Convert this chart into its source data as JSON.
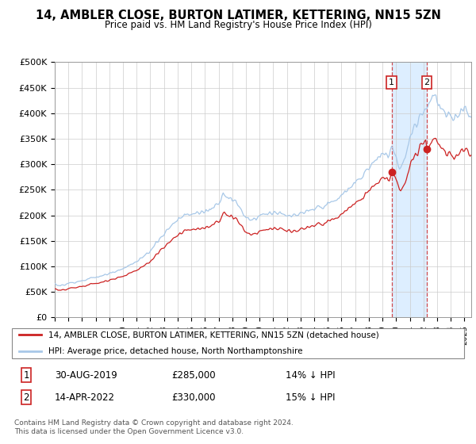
{
  "title": "14, AMBLER CLOSE, BURTON LATIMER, KETTERING, NN15 5ZN",
  "subtitle": "Price paid vs. HM Land Registry's House Price Index (HPI)",
  "hpi_color": "#a8c8e8",
  "property_color": "#cc2222",
  "shade_color": "#ddeeff",
  "legend_entry1": "14, AMBLER CLOSE, BURTON LATIMER, KETTERING, NN15 5ZN (detached house)",
  "legend_entry2": "HPI: Average price, detached house, North Northamptonshire",
  "table_row1": [
    "1",
    "30-AUG-2019",
    "£285,000",
    "14% ↓ HPI"
  ],
  "table_row2": [
    "2",
    "14-APR-2022",
    "£330,000",
    "15% ↓ HPI"
  ],
  "footer": "Contains HM Land Registry data © Crown copyright and database right 2024.\nThis data is licensed under the Open Government Licence v3.0.",
  "ylim": [
    0,
    500000
  ],
  "yticks": [
    0,
    50000,
    100000,
    150000,
    200000,
    250000,
    300000,
    350000,
    400000,
    450000,
    500000
  ],
  "ytick_labels": [
    "£0",
    "£50K",
    "£100K",
    "£150K",
    "£200K",
    "£250K",
    "£300K",
    "£350K",
    "£400K",
    "£450K",
    "£500K"
  ],
  "marker1_year": 2019.67,
  "marker1_value": 285000,
  "marker2_year": 2022.25,
  "marker2_value": 330000,
  "xmin": 1995.0,
  "xmax": 2025.5,
  "purchase1_price": 285000,
  "purchase1_year": 2019.67,
  "purchase2_price": 330000,
  "purchase2_year": 2022.25
}
